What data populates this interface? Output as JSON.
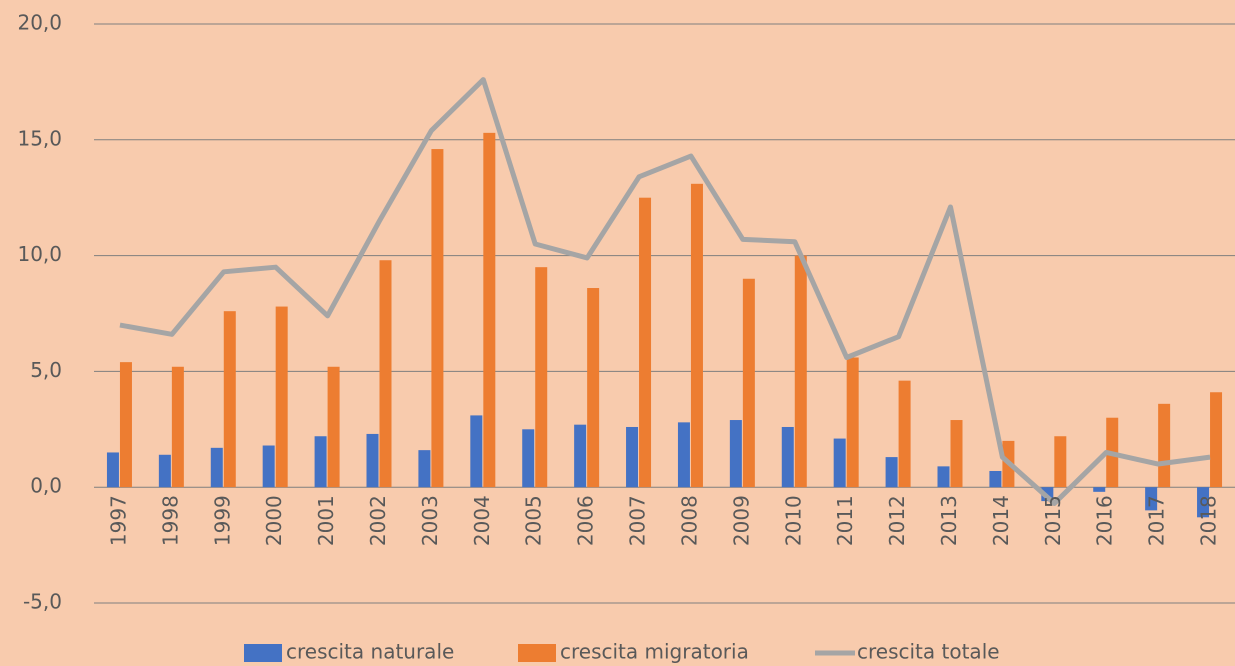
{
  "chart_data": {
    "type": "bar_line",
    "categories": [
      "1997",
      "1998",
      "1999",
      "2000",
      "2001",
      "2002",
      "2003",
      "2004",
      "2005",
      "2006",
      "2007",
      "2008",
      "2009",
      "2010",
      "2011",
      "2012",
      "2013",
      "2014",
      "2015",
      "2016",
      "2017",
      "2018"
    ],
    "series": [
      {
        "name": "crescita naturale",
        "color": "#4472c4",
        "type": "bar",
        "values": [
          1.5,
          1.4,
          1.7,
          1.8,
          2.2,
          2.3,
          1.6,
          3.1,
          2.5,
          2.7,
          2.6,
          2.8,
          2.9,
          2.6,
          2.1,
          1.3,
          0.9,
          0.7,
          -0.6,
          -0.2,
          -1.0,
          -1.3
        ]
      },
      {
        "name": "crescita migratoria",
        "color": "#ed7d31",
        "type": "bar",
        "values": [
          5.4,
          5.2,
          7.6,
          7.8,
          5.2,
          9.8,
          14.6,
          15.3,
          9.5,
          8.6,
          12.5,
          13.1,
          9.0,
          10.0,
          5.6,
          4.6,
          2.9,
          2.0,
          2.2,
          3.0,
          3.6,
          4.1
        ]
      },
      {
        "name": "crescita totale",
        "color": "#a5a5a5",
        "type": "line",
        "values": [
          7.0,
          6.6,
          9.3,
          9.5,
          7.4,
          11.5,
          15.4,
          17.6,
          10.5,
          9.9,
          13.4,
          14.3,
          10.7,
          10.6,
          5.6,
          6.5,
          12.1,
          1.3,
          -0.7,
          1.5,
          1.0,
          1.3
        ]
      }
    ],
    "ylim": [
      -5,
      20
    ],
    "yticks": [
      {
        "value": -5,
        "label": "-5,0"
      },
      {
        "value": 0,
        "label": "0,0"
      },
      {
        "value": 5,
        "label": "5,0"
      },
      {
        "value": 10,
        "label": "10,0"
      },
      {
        "value": 15,
        "label": "15,0"
      },
      {
        "value": 20,
        "label": "20,0"
      }
    ],
    "grid": true,
    "legend": "bottom"
  }
}
